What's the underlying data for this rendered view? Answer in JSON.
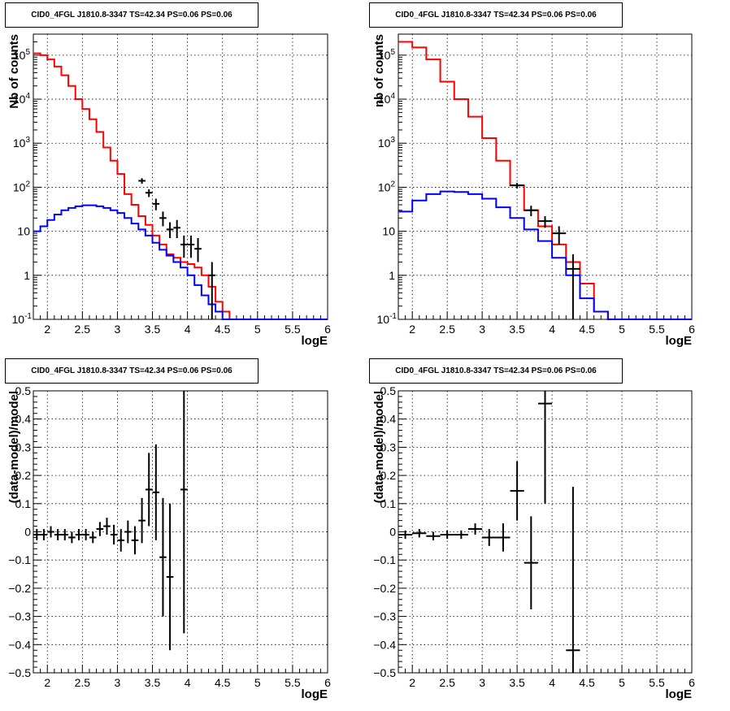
{
  "chart_data": [
    {
      "type": "line",
      "title": "CID0_4FGL J1810.8-3347 TS=42.34 PS=0.06 PS=0.06",
      "xlabel": "logE",
      "ylabel": "Nb of counts",
      "xlim": [
        1.8,
        6.0
      ],
      "ylim": [
        0.1,
        300000
      ],
      "yscale": "log",
      "grid": true,
      "xticks": [
        "2",
        "2.5",
        "3",
        "3.5",
        "4",
        "4.5",
        "5",
        "5.5",
        "6"
      ],
      "yticks": [
        "10-1",
        "1",
        "10",
        "102",
        "103",
        "104",
        "105"
      ],
      "bin_width": 0.1,
      "series": [
        {
          "color": "#ff0000",
          "bin_low": [
            1.8,
            1.9,
            2.0,
            2.1,
            2.2,
            2.3,
            2.4,
            2.5,
            2.6,
            2.7,
            2.8,
            2.9,
            3.0,
            3.1,
            3.2,
            3.3,
            3.4,
            3.5,
            3.6,
            3.7,
            3.8,
            3.9,
            4.0,
            4.1,
            4.2,
            4.3,
            4.4,
            4.5,
            4.6,
            4.7,
            4.8,
            4.9,
            5.0,
            5.1,
            5.2,
            5.3,
            5.4,
            5.5,
            5.6,
            5.7,
            5.8,
            5.9
          ],
          "values": [
            110000,
            100000,
            80000,
            55000,
            35000,
            20000,
            10000,
            6000,
            3500,
            1800,
            800,
            400,
            200,
            70,
            40,
            22,
            14,
            8,
            5,
            3,
            2.5,
            2,
            1.8,
            1.5,
            1,
            0.55,
            0.25,
            0.15,
            0.1,
            0.1,
            0.1,
            0.1,
            0.1,
            0.1,
            0.1,
            0.1,
            0.1,
            0.1,
            0.1,
            0.1,
            0.1,
            0.1
          ]
        },
        {
          "color": "#0000ff",
          "bin_low": [
            1.8,
            1.9,
            2.0,
            2.1,
            2.2,
            2.3,
            2.4,
            2.5,
            2.6,
            2.7,
            2.8,
            2.9,
            3.0,
            3.1,
            3.2,
            3.3,
            3.4,
            3.5,
            3.6,
            3.7,
            3.8,
            3.9,
            4.0,
            4.1,
            4.2,
            4.3,
            4.4,
            4.5,
            4.6,
            4.7,
            4.8,
            4.9,
            5.0,
            5.1,
            5.2,
            5.3,
            5.4,
            5.5,
            5.6,
            5.7,
            5.8,
            5.9
          ],
          "values": [
            10,
            13,
            18,
            24,
            30,
            34,
            37,
            39,
            39,
            37,
            34,
            30,
            26,
            20,
            15,
            11,
            8,
            5.5,
            3.8,
            2.8,
            2,
            1.5,
            1,
            0.6,
            0.35,
            0.22,
            0.15,
            0.1,
            0.1,
            0.1,
            0.1,
            0.1,
            0.1,
            0.1,
            0.1,
            0.1,
            0.1,
            0.1,
            0.1,
            0.1,
            0.1,
            0.1
          ]
        }
      ],
      "points": {
        "color": "#000000",
        "x": [
          3.35,
          3.45,
          3.55,
          3.65,
          3.75,
          3.85,
          3.95,
          4.05,
          4.15,
          4.35
        ],
        "y": [
          140,
          75,
          42,
          20,
          11,
          12,
          5,
          5,
          4,
          1
        ],
        "ylow": [
          120,
          60,
          30,
          13,
          7,
          7,
          2.5,
          2.5,
          2,
          0.1
        ],
        "yhigh": [
          160,
          90,
          55,
          28,
          16,
          18,
          8,
          8,
          7,
          2
        ]
      }
    },
    {
      "type": "line",
      "title": "CID0_4FGL J1810.8-3347 TS=42.34 PS=0.06 PS=0.06",
      "xlabel": "logE",
      "ylabel": "nb of counts",
      "xlim": [
        1.8,
        6.0
      ],
      "ylim": [
        0.1,
        300000
      ],
      "yscale": "log",
      "grid": true,
      "xticks": [
        "2",
        "2.5",
        "3",
        "3.5",
        "4",
        "4.5",
        "5",
        "5.5",
        "6"
      ],
      "yticks": [
        "10-1",
        "1",
        "10",
        "102",
        "103",
        "104",
        "105"
      ],
      "bin_width": 0.2,
      "series": [
        {
          "color": "#ff0000",
          "bin_low": [
            1.8,
            2.0,
            2.2,
            2.4,
            2.6,
            2.8,
            3.0,
            3.2,
            3.4,
            3.6,
            3.8,
            4.0,
            4.2,
            4.4,
            4.6,
            4.8,
            5.0,
            5.2,
            5.4,
            5.6,
            5.8
          ],
          "values": [
            200000,
            150000,
            80000,
            25000,
            10000,
            4000,
            1300,
            400,
            110,
            30,
            13,
            5,
            2,
            0.65,
            0.15,
            0.1,
            0.1,
            0.1,
            0.1,
            0.1,
            0.1
          ]
        },
        {
          "color": "#0000ff",
          "bin_low": [
            1.8,
            2.0,
            2.2,
            2.4,
            2.6,
            2.8,
            3.0,
            3.2,
            3.4,
            3.6,
            3.8,
            4.0,
            4.2,
            4.4,
            4.6,
            4.8,
            5.0,
            5.2,
            5.4,
            5.6,
            5.8
          ],
          "values": [
            28,
            50,
            70,
            80,
            78,
            70,
            55,
            35,
            20,
            11,
            6,
            2.5,
            1,
            0.3,
            0.15,
            0.1,
            0.1,
            0.1,
            0.1,
            0.1,
            0.1
          ]
        }
      ],
      "points": {
        "color": "#000000",
        "x": [
          3.5,
          3.7,
          3.9,
          4.1,
          4.3
        ],
        "y": [
          110,
          30,
          17,
          9,
          1.4
        ],
        "ylow": [
          95,
          22,
          12,
          5,
          0.1
        ],
        "yhigh": [
          125,
          38,
          22,
          13,
          3
        ]
      }
    },
    {
      "type": "scatter",
      "title": "CID0_4FGL J1810.8-3347 TS=42.34 PS=0.06 PS=0.06",
      "xlabel": "logE",
      "ylabel": "(data-model)/model",
      "xlim": [
        1.8,
        6.0
      ],
      "ylim": [
        -0.5,
        0.5
      ],
      "grid": true,
      "xticks": [
        "2",
        "2.5",
        "3",
        "3.5",
        "4",
        "4.5",
        "5",
        "5.5",
        "6"
      ],
      "yticks": [
        "-0.5",
        "-0.4",
        "-0.3",
        "-0.2",
        "-0.1",
        "0",
        "0.1",
        "0.2",
        "0.3",
        "0.4",
        "0.5"
      ],
      "bin_width": 0.1,
      "points": {
        "color": "#000000",
        "x": [
          1.85,
          1.95,
          2.05,
          2.15,
          2.25,
          2.35,
          2.45,
          2.55,
          2.65,
          2.75,
          2.85,
          2.95,
          3.05,
          3.15,
          3.25,
          3.35,
          3.45,
          3.55,
          3.65,
          3.75,
          3.95
        ],
        "y": [
          -0.01,
          -0.01,
          0.0,
          -0.01,
          -0.01,
          -0.02,
          -0.01,
          -0.01,
          -0.02,
          0.01,
          0.02,
          -0.01,
          -0.03,
          0.0,
          -0.03,
          0.04,
          0.15,
          0.14,
          -0.09,
          -0.16,
          0.15
        ],
        "yerr": [
          0.02,
          0.02,
          0.02,
          0.02,
          0.02,
          0.02,
          0.02,
          0.02,
          0.02,
          0.025,
          0.03,
          0.035,
          0.04,
          0.04,
          0.05,
          0.08,
          0.13,
          0.17,
          0.21,
          0.26,
          0.51
        ]
      }
    },
    {
      "type": "scatter",
      "title": "CID0_4FGL J1810.8-3347 TS=42.34 PS=0.06 PS=0.06",
      "xlabel": "logE",
      "ylabel": "(data-model)/model",
      "xlim": [
        1.8,
        6.0
      ],
      "ylim": [
        -0.5,
        0.5
      ],
      "grid": true,
      "xticks": [
        "2",
        "2.5",
        "3",
        "3.5",
        "4",
        "4.5",
        "5",
        "5.5",
        "6"
      ],
      "yticks": [
        "-0.5",
        "-0.4",
        "-0.3",
        "-0.2",
        "-0.1",
        "0",
        "0.1",
        "0.2",
        "0.3",
        "0.4",
        "0.5"
      ],
      "bin_width": 0.2,
      "points": {
        "color": "#000000",
        "x": [
          1.9,
          2.1,
          2.3,
          2.5,
          2.7,
          2.9,
          3.1,
          3.3,
          3.5,
          3.7,
          3.9,
          4.3
        ],
        "y": [
          -0.01,
          -0.005,
          -0.015,
          -0.01,
          -0.01,
          0.01,
          -0.02,
          -0.02,
          0.145,
          -0.11,
          0.455,
          -0.42
        ],
        "yerr": [
          0.015,
          0.015,
          0.015,
          0.015,
          0.015,
          0.02,
          0.03,
          0.05,
          0.105,
          0.165,
          0.355,
          0.58
        ]
      }
    }
  ]
}
